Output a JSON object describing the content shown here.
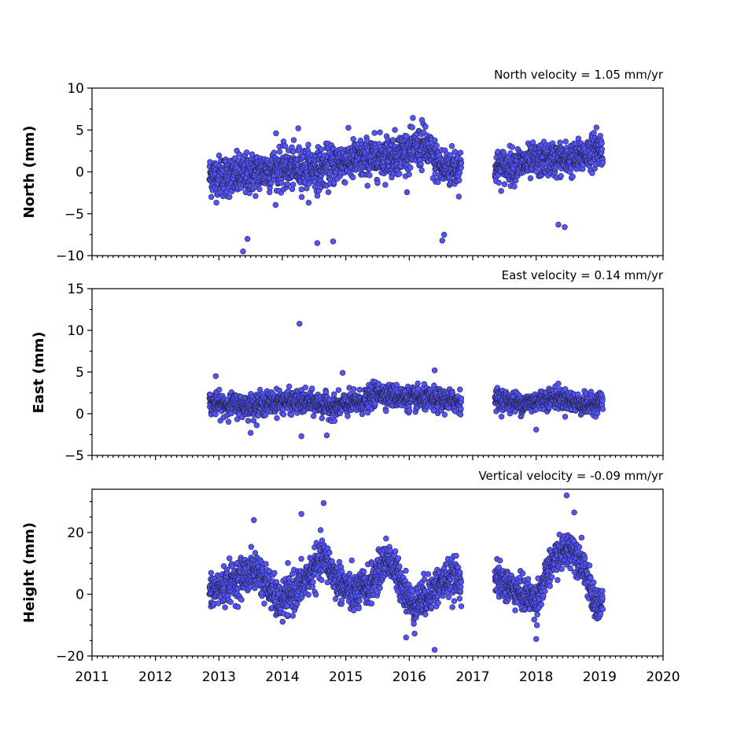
{
  "chart_data": [
    {
      "type": "scatter",
      "id": "north",
      "ylabel": "North (mm)",
      "annotation": "North velocity = 1.05 mm/yr",
      "ylim": [
        -10,
        10
      ],
      "yticks": [
        -10,
        -5,
        0,
        5,
        10
      ],
      "ytick_labels": [
        "−10",
        "−5",
        "0",
        "5",
        "10"
      ],
      "yminor_step": 2.5,
      "xlim": [
        2011,
        2020
      ],
      "grid": false,
      "color": "#5555ff",
      "segments": [
        {
          "x0": 2012.85,
          "x1": 2016.82,
          "knots": [
            [
              2012.85,
              -0.5
            ],
            [
              2013.3,
              -0.5
            ],
            [
              2013.8,
              0.2
            ],
            [
              2014.3,
              0.5
            ],
            [
              2014.6,
              0.3
            ],
            [
              2014.9,
              1.2
            ],
            [
              2015.3,
              1.5
            ],
            [
              2015.7,
              2.0
            ],
            [
              2016.0,
              2.5
            ],
            [
              2016.25,
              3.0
            ],
            [
              2016.5,
              0.5
            ],
            [
              2016.82,
              0.5
            ]
          ],
          "spread": 2.2
        },
        {
          "x0": 2017.35,
          "x1": 2019.05,
          "knots": [
            [
              2017.35,
              0.5
            ],
            [
              2017.8,
              1.0
            ],
            [
              2018.2,
              1.5
            ],
            [
              2018.6,
              1.5
            ],
            [
              2019.05,
              3.0
            ]
          ],
          "spread": 1.8
        }
      ],
      "outliers": [
        [
          2013.38,
          -9.5
        ],
        [
          2013.45,
          -8.0
        ],
        [
          2014.25,
          5.2
        ],
        [
          2014.55,
          -8.5
        ],
        [
          2014.8,
          -8.3
        ],
        [
          2016.2,
          6.2
        ],
        [
          2016.52,
          -8.2
        ],
        [
          2016.55,
          -7.5
        ],
        [
          2018.35,
          -6.3
        ],
        [
          2018.45,
          -6.6
        ],
        [
          2018.95,
          5.3
        ],
        [
          2013.9,
          4.6
        ]
      ]
    },
    {
      "type": "scatter",
      "id": "east",
      "ylabel": "East (mm)",
      "annotation": "East velocity = 0.14 mm/yr",
      "ylim": [
        -5,
        15
      ],
      "yticks": [
        -5,
        0,
        5,
        10,
        15
      ],
      "ytick_labels": [
        "−5",
        "0",
        "5",
        "10",
        "15"
      ],
      "yminor_step": 2.5,
      "xlim": [
        2011,
        2020
      ],
      "grid": false,
      "color": "#5555ff",
      "segments": [
        {
          "x0": 2012.85,
          "x1": 2016.82,
          "knots": [
            [
              2012.85,
              1.2
            ],
            [
              2013.5,
              1.0
            ],
            [
              2014.0,
              1.5
            ],
            [
              2014.5,
              1.3
            ],
            [
              2014.8,
              0.8
            ],
            [
              2015.3,
              1.5
            ],
            [
              2015.5,
              2.5
            ],
            [
              2016.0,
              1.8
            ],
            [
              2016.82,
              1.5
            ]
          ],
          "spread": 1.2
        },
        {
          "x0": 2017.35,
          "x1": 2019.05,
          "knots": [
            [
              2017.35,
              1.8
            ],
            [
              2017.8,
              1.2
            ],
            [
              2018.3,
              2.0
            ],
            [
              2018.8,
              1.0
            ],
            [
              2019.05,
              1.5
            ]
          ],
          "spread": 1.1
        }
      ],
      "outliers": [
        [
          2014.27,
          10.8
        ],
        [
          2014.3,
          -2.7
        ],
        [
          2013.5,
          -2.3
        ],
        [
          2014.7,
          -2.6
        ],
        [
          2016.4,
          5.2
        ],
        [
          2018.0,
          -1.9
        ],
        [
          2012.95,
          4.5
        ],
        [
          2014.95,
          4.9
        ]
      ]
    },
    {
      "type": "scatter",
      "id": "height",
      "ylabel": "Height (mm)",
      "annotation": "Vertical velocity = -0.09 mm/yr",
      "ylim": [
        -20,
        34
      ],
      "yticks": [
        -20,
        0,
        20
      ],
      "ytick_labels": [
        "−20",
        "0",
        "20"
      ],
      "yminor_step": 5,
      "xlim": [
        2011,
        2020
      ],
      "xticks": [
        2011,
        2012,
        2013,
        2014,
        2015,
        2016,
        2017,
        2018,
        2019,
        2020
      ],
      "xtick_labels": [
        "2011",
        "2012",
        "2013",
        "2014",
        "2015",
        "2016",
        "2017",
        "2018",
        "2019",
        "2020"
      ],
      "grid": false,
      "color": "#5555ff",
      "segments": [
        {
          "x0": 2012.85,
          "x1": 2016.82,
          "knots": [
            [
              2012.85,
              0.0
            ],
            [
              2013.1,
              3.0
            ],
            [
              2013.6,
              8.0
            ],
            [
              2013.95,
              -3.0
            ],
            [
              2014.3,
              3.0
            ],
            [
              2014.65,
              12.0
            ],
            [
              2014.85,
              5.0
            ],
            [
              2015.1,
              0.0
            ],
            [
              2015.4,
              3.0
            ],
            [
              2015.65,
              12.0
            ],
            [
              2015.9,
              3.0
            ],
            [
              2016.05,
              -4.0
            ],
            [
              2016.3,
              0.0
            ],
            [
              2016.6,
              5.0
            ],
            [
              2016.82,
              5.0
            ]
          ],
          "spread": 5.5
        },
        {
          "x0": 2017.35,
          "x1": 2019.05,
          "knots": [
            [
              2017.35,
              5.0
            ],
            [
              2017.7,
              1.0
            ],
            [
              2018.0,
              -2.0
            ],
            [
              2018.3,
              12.0
            ],
            [
              2018.55,
              15.0
            ],
            [
              2018.75,
              10.0
            ],
            [
              2018.9,
              -3.0
            ],
            [
              2019.05,
              -3.0
            ]
          ],
          "spread": 5.0
        }
      ],
      "outliers": [
        [
          2014.65,
          29.5
        ],
        [
          2018.48,
          32.0
        ],
        [
          2016.4,
          -18.0
        ],
        [
          2018.0,
          -14.5
        ],
        [
          2015.95,
          -14.0
        ],
        [
          2014.3,
          26.0
        ],
        [
          2013.55,
          24.0
        ],
        [
          2018.6,
          26.5
        ]
      ]
    }
  ]
}
